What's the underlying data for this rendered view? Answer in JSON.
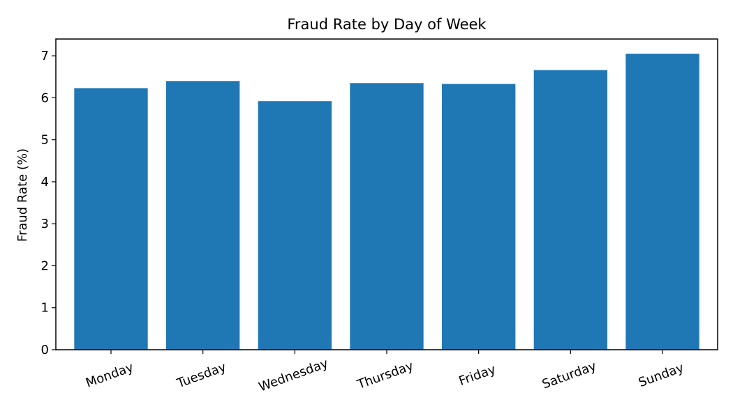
{
  "chart_data": {
    "type": "bar",
    "title": "Fraud Rate by Day of Week",
    "xlabel": "",
    "ylabel": "Fraud Rate (%)",
    "categories": [
      "Monday",
      "Tuesday",
      "Wednesday",
      "Thursday",
      "Friday",
      "Saturday",
      "Sunday"
    ],
    "values": [
      6.23,
      6.4,
      5.92,
      6.35,
      6.33,
      6.66,
      7.05
    ],
    "ylim": [
      0,
      7.4
    ],
    "yticks": [
      0,
      1,
      2,
      3,
      4,
      5,
      6,
      7
    ],
    "grid": false,
    "legend": "none",
    "bar_color": "#1f77b4",
    "x_tick_rotation_deg": -20
  }
}
